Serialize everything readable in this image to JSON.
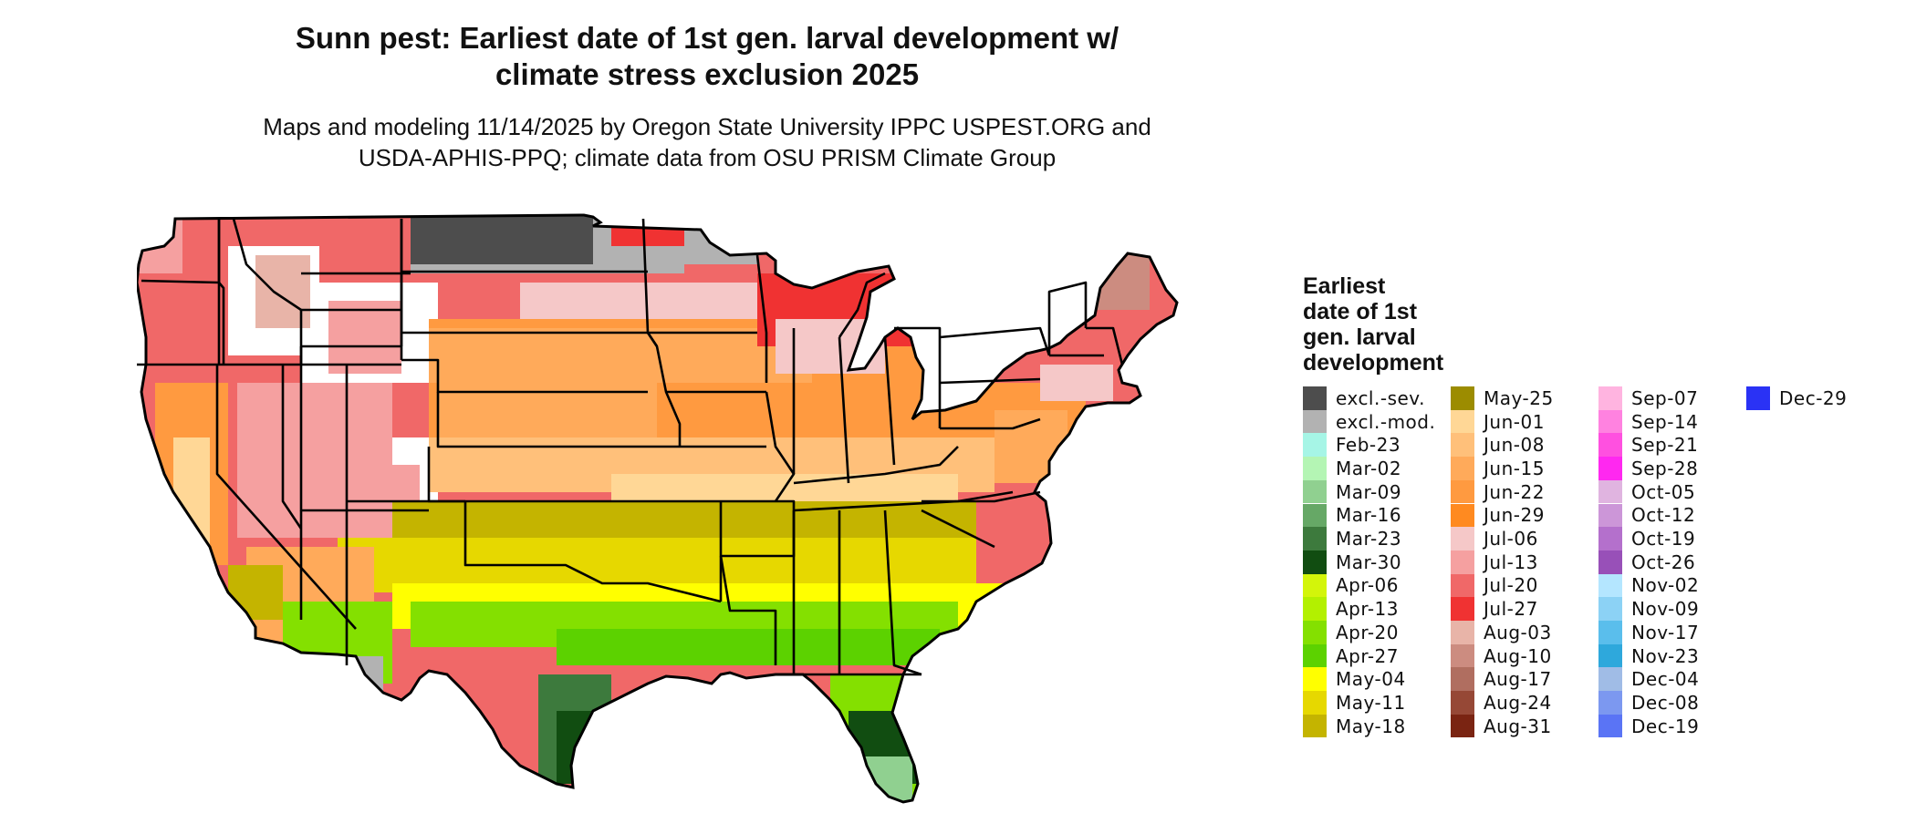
{
  "header": {
    "title": "Sunn pest: Earliest date of 1st gen. larval development w/\nclimate stress exclusion 2025",
    "subtitle": "Maps and modeling 11/14/2025 by Oregon State University IPPC USPEST.ORG and\nUSDA-APHIS-PPQ; climate data from OSU PRISM Climate Group"
  },
  "legend": {
    "title": "Earliest\ndate of 1st\ngen. larval\ndevelopment",
    "columns": [
      [
        {
          "label": "excl.-sev.",
          "color": "#4d4d4d"
        },
        {
          "label": "excl.-mod.",
          "color": "#b2b2b2"
        },
        {
          "label": "Feb-23",
          "color": "#a6f5e6"
        },
        {
          "label": "Mar-02",
          "color": "#b4f5b4"
        },
        {
          "label": "Mar-09",
          "color": "#90d090"
        },
        {
          "label": "Mar-16",
          "color": "#66a866"
        },
        {
          "label": "Mar-23",
          "color": "#3d7a3d"
        },
        {
          "label": "Mar-30",
          "color": "#114d11"
        },
        {
          "label": "Apr-06",
          "color": "#d3f50a"
        },
        {
          "label": "Apr-13",
          "color": "#b3f000"
        },
        {
          "label": "Apr-20",
          "color": "#84e000"
        },
        {
          "label": "Apr-27",
          "color": "#5cd200"
        },
        {
          "label": "May-04",
          "color": "#ffff00"
        },
        {
          "label": "May-11",
          "color": "#e6d800"
        },
        {
          "label": "May-18",
          "color": "#c4b400"
        }
      ],
      [
        {
          "label": "May-25",
          "color": "#9c8c00"
        },
        {
          "label": "Jun-01",
          "color": "#ffd796"
        },
        {
          "label": "Jun-08",
          "color": "#ffc07a"
        },
        {
          "label": "Jun-15",
          "color": "#ffaa5a"
        },
        {
          "label": "Jun-22",
          "color": "#ff9a40"
        },
        {
          "label": "Jun-29",
          "color": "#ff8a20"
        },
        {
          "label": "Jul-06",
          "color": "#f5c8c8"
        },
        {
          "label": "Jul-13",
          "color": "#f5a0a0"
        },
        {
          "label": "Jul-20",
          "color": "#f06868"
        },
        {
          "label": "Jul-27",
          "color": "#f03232"
        },
        {
          "label": "Aug-03",
          "color": "#e8b4a8"
        },
        {
          "label": "Aug-10",
          "color": "#cc8c80"
        },
        {
          "label": "Aug-17",
          "color": "#b06e60"
        },
        {
          "label": "Aug-24",
          "color": "#964836"
        },
        {
          "label": "Aug-31",
          "color": "#7a2412"
        }
      ],
      [
        {
          "label": "Sep-07",
          "color": "#ffb4e0"
        },
        {
          "label": "Sep-14",
          "color": "#ff82e0"
        },
        {
          "label": "Sep-21",
          "color": "#ff50e0"
        },
        {
          "label": "Sep-28",
          "color": "#ff28f0"
        },
        {
          "label": "Oct-05",
          "color": "#e0b4e0"
        },
        {
          "label": "Oct-12",
          "color": "#cc96d8"
        },
        {
          "label": "Oct-19",
          "color": "#b470cc"
        },
        {
          "label": "Oct-26",
          "color": "#9850b8"
        },
        {
          "label": "Nov-02",
          "color": "#b4e6ff"
        },
        {
          "label": "Nov-09",
          "color": "#8cd2f5"
        },
        {
          "label": "Nov-17",
          "color": "#5abeec"
        },
        {
          "label": "Nov-23",
          "color": "#2ea8dc"
        },
        {
          "label": "Dec-04",
          "color": "#a0bce6"
        },
        {
          "label": "Dec-08",
          "color": "#7c98f0"
        },
        {
          "label": "Dec-19",
          "color": "#5a74f5"
        }
      ],
      [
        {
          "label": "Dec-29",
          "color": "#2a32f5"
        }
      ]
    ]
  }
}
